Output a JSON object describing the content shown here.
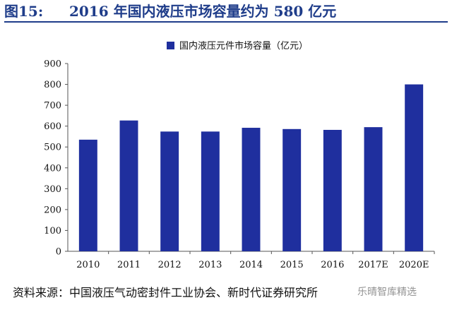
{
  "header": {
    "figure_number": "图15:",
    "title": "2016 年国内液压市场容量约为 580 亿元"
  },
  "source_text": "资料来源：中国液压气动密封件工业协会、新时代证券研究所",
  "watermark": "乐晴智库精选",
  "chart_data": {
    "type": "bar",
    "categories": [
      "2010",
      "2011",
      "2012",
      "2013",
      "2014",
      "2015",
      "2016",
      "2017E",
      "2020E"
    ],
    "series": [
      {
        "name": "国内液压元件市场容量（亿元）",
        "values": [
          535,
          627,
          574,
          574,
          592,
          586,
          582,
          595,
          800
        ]
      }
    ],
    "ylim": [
      0,
      900
    ],
    "yticks": [
      0,
      100,
      200,
      300,
      400,
      500,
      600,
      700,
      800,
      900
    ],
    "grid": false,
    "legend_position": "top-center",
    "bar_color": "#1f2f9e"
  }
}
